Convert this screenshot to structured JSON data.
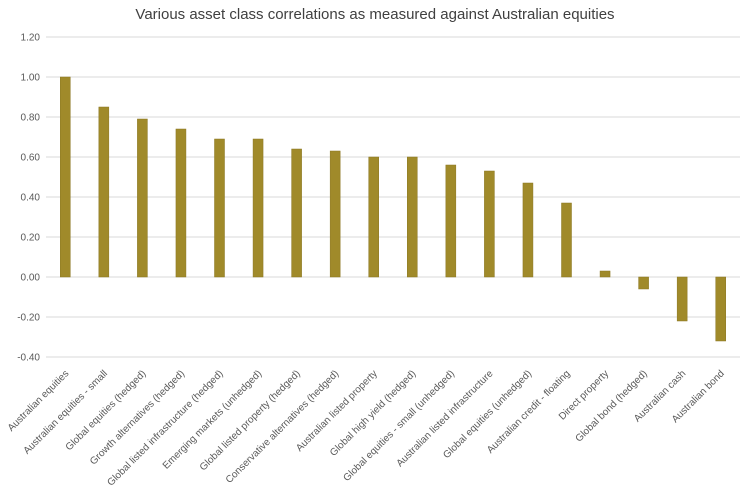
{
  "chart_data": {
    "type": "bar",
    "title": "Various asset class correlations as measured against Australian equities",
    "xlabel": "",
    "ylabel": "",
    "ylim": [
      -0.4,
      1.2
    ],
    "yticks": [
      "1.20",
      "1.00",
      "0.80",
      "0.60",
      "0.40",
      "0.20",
      "0.00",
      "-0.20",
      "-0.40"
    ],
    "grid": true,
    "categories": [
      "Australian equities",
      "Australian equities - small",
      "Global equities (hedged)",
      "Growth alternatives (hedged)",
      "Global listed infrastructure (hedged)",
      "Emerging markets (unhedged)",
      "Global listed property (hedged)",
      "Conservative alternatives (hedged)",
      "Australian listed property",
      "Global high yield (hedged)",
      "Global equities - small (unhedged)",
      "Australian listed infrastructure",
      "Global equities (unhedged)",
      "Australian credit - floating",
      "Direct property",
      "Global bond (hedged)",
      "Australian cash",
      "Australian bond"
    ],
    "values": [
      1.0,
      0.85,
      0.79,
      0.74,
      0.69,
      0.69,
      0.64,
      0.63,
      0.6,
      0.6,
      0.56,
      0.53,
      0.47,
      0.37,
      0.03,
      -0.06,
      -0.22,
      -0.32
    ],
    "bar_color": "#a08a2a",
    "bar_edge_color": "#8a7620",
    "grid_color": "#d9d9d9"
  }
}
